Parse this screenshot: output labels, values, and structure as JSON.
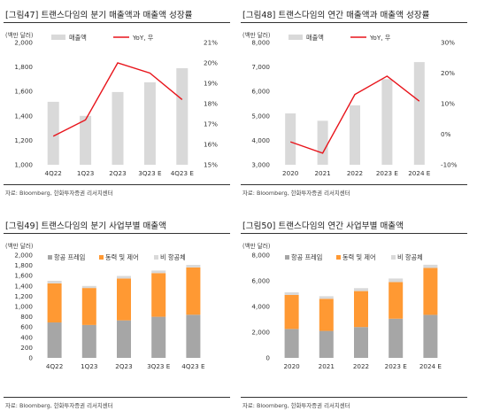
{
  "chart_data": [
    {
      "type": "bar+line",
      "title": "[그림47]  트랜스다임의 분기 매출액과 매출액 성장률",
      "unit_label": "(백만 달러)",
      "source": "자료: Bloomberg, 한화투자증권 리서치센터",
      "categories": [
        "4Q22",
        "1Q23",
        "2Q23",
        "3Q23 E",
        "4Q23 E"
      ],
      "series": [
        {
          "name": "매출액",
          "kind": "bar",
          "axis": "left",
          "color": "#d9d9d9",
          "values": [
            1515,
            1400,
            1595,
            1675,
            1790
          ]
        },
        {
          "name": "YoY, 우",
          "kind": "line",
          "axis": "right",
          "color": "#e8141b",
          "values": [
            16.4,
            17.2,
            20.0,
            19.5,
            18.2
          ]
        }
      ],
      "ylim": [
        1000,
        2000
      ],
      "yticks": [
        "1,000",
        "1,200",
        "1,400",
        "1,600",
        "1,800",
        "2,000"
      ],
      "y2lim": [
        15,
        21
      ],
      "y2ticks": [
        "15%",
        "16%",
        "17%",
        "18%",
        "19%",
        "20%",
        "21%"
      ],
      "legend": "top-left"
    },
    {
      "type": "bar+line",
      "title": "[그림48]  트랜스다임의 연간 매출액과 매출액 성장률",
      "unit_label": "(백만 달러)",
      "source": "자료: Bloomberg, 한화투자증권 리서치센터",
      "categories": [
        "2020",
        "2021",
        "2022",
        "2023 E",
        "2024 E"
      ],
      "series": [
        {
          "name": "매출액",
          "kind": "bar",
          "axis": "left",
          "color": "#d9d9d9",
          "values": [
            5100,
            4800,
            5430,
            6500,
            7200
          ]
        },
        {
          "name": "YoY, 우",
          "kind": "line",
          "axis": "right",
          "color": "#e8141b",
          "values": [
            -2.5,
            -6.2,
            13.0,
            19.0,
            10.8
          ]
        }
      ],
      "ylim": [
        3000,
        8000
      ],
      "yticks": [
        "3,000",
        "4,000",
        "5,000",
        "6,000",
        "7,000",
        "8,000"
      ],
      "y2lim": [
        -10,
        30
      ],
      "y2ticks": [
        "-10%",
        "0%",
        "10%",
        "20%",
        "30%"
      ],
      "legend": "top-left"
    },
    {
      "type": "stacked-bar",
      "title": "[그림49]  트랜스다임의 분기 사업부별 매출액",
      "unit_label": "(백만 달러)",
      "source": "자료: Bloomberg, 한화투자증권 리서치센터",
      "categories": [
        "4Q22",
        "1Q23",
        "2Q23",
        "3Q23 E",
        "4Q23 E"
      ],
      "series": [
        {
          "name": "항공 프레임",
          "color": "#a6a6a6",
          "values": [
            690,
            640,
            730,
            800,
            840
          ]
        },
        {
          "name": "동력 및 제어",
          "color": "#ff9933",
          "values": [
            760,
            720,
            815,
            850,
            920
          ]
        },
        {
          "name": "비 항공체",
          "color": "#d9d9d9",
          "values": [
            50,
            40,
            50,
            50,
            50
          ]
        }
      ],
      "ylim": [
        0,
        2000
      ],
      "yticks": [
        "0",
        "200",
        "400",
        "600",
        "800",
        "1,000",
        "1,200",
        "1,400",
        "1,600",
        "1,800",
        "2,000"
      ],
      "legend": "top-left"
    },
    {
      "type": "stacked-bar",
      "title": "[그림50]  트랜스다임의 연간 사업부별 매출액",
      "unit_label": "(백만 달러)",
      "source": "자료: Bloomberg, 한화투자증권 리서치센터",
      "categories": [
        "2020",
        "2021",
        "2022",
        "2023 E",
        "2024 E"
      ],
      "series": [
        {
          "name": "항공 프레임",
          "color": "#a6a6a6",
          "values": [
            2250,
            2100,
            2400,
            3050,
            3350
          ]
        },
        {
          "name": "동력 및 제어",
          "color": "#ff9933",
          "values": [
            2650,
            2500,
            2800,
            2850,
            3650
          ]
        },
        {
          "name": "비 항공체",
          "color": "#d9d9d9",
          "values": [
            200,
            200,
            230,
            280,
            250
          ]
        }
      ],
      "ylim": [
        0,
        8000
      ],
      "yticks": [
        "0",
        "2,000",
        "4,000",
        "6,000",
        "8,000"
      ],
      "legend": "top-left"
    }
  ]
}
